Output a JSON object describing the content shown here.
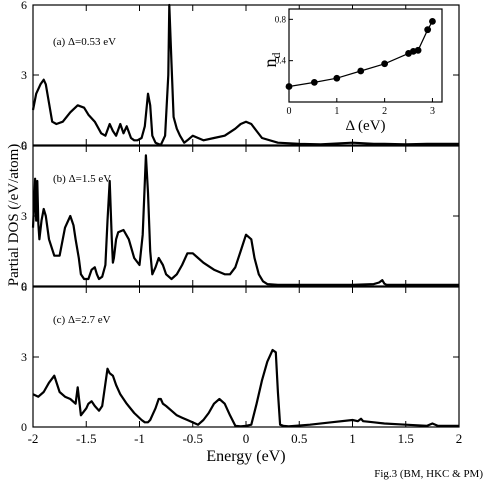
{
  "figure": {
    "caption": "Fig.3 (BM, HKC & PM)",
    "xlabel": "Energy (eV)",
    "ylabel": "Partial DOS (/eV/atom)"
  },
  "chart_data": [
    {
      "type": "line",
      "annotation": "(a) Δ=0.53 eV",
      "xlim": [
        -2,
        2
      ],
      "ylim": [
        0,
        6
      ],
      "yticks": [
        0,
        3,
        6
      ],
      "x": [
        -2.0,
        -1.97,
        -1.93,
        -1.9,
        -1.88,
        -1.85,
        -1.82,
        -1.78,
        -1.72,
        -1.65,
        -1.58,
        -1.52,
        -1.48,
        -1.42,
        -1.36,
        -1.32,
        -1.28,
        -1.25,
        -1.22,
        -1.18,
        -1.15,
        -1.12,
        -1.08,
        -1.05,
        -1.02,
        -0.98,
        -0.95,
        -0.92,
        -0.9,
        -0.88,
        -0.85,
        -0.8,
        -0.76,
        -0.73,
        -0.72,
        -0.7,
        -0.68,
        -0.65,
        -0.62,
        -0.58,
        -0.55,
        -0.5,
        -0.45,
        -0.4,
        -0.3,
        -0.2,
        -0.1,
        -0.05,
        0.0,
        0.05,
        0.1,
        0.15,
        0.3,
        0.5,
        0.7,
        1.0,
        1.2,
        1.3,
        1.5,
        1.7,
        1.8,
        2.0
      ],
      "y": [
        1.5,
        2.2,
        2.6,
        2.8,
        2.6,
        1.8,
        1.0,
        0.9,
        1.0,
        1.4,
        1.7,
        1.6,
        1.3,
        1.0,
        0.5,
        0.4,
        0.9,
        0.6,
        0.4,
        0.9,
        0.5,
        0.8,
        0.3,
        0.2,
        0.2,
        0.3,
        0.8,
        2.2,
        1.7,
        0.4,
        0.1,
        0.0,
        0.4,
        3.0,
        6.0,
        3.5,
        1.2,
        0.7,
        0.4,
        0.1,
        0.2,
        0.4,
        0.3,
        0.2,
        0.3,
        0.4,
        0.7,
        0.9,
        1.0,
        0.9,
        0.6,
        0.3,
        0.1,
        0.05,
        0.03,
        0.1,
        0.05,
        0.05,
        0.03,
        0.05,
        0.05,
        0.05
      ],
      "inset": {
        "type": "line+scatter",
        "xlabel": "Δ (eV)",
        "ylabel": "n_d",
        "ylabel_main": "n",
        "ylabel_sub": "d",
        "xlim": [
          0,
          3.2
        ],
        "ylim": [
          0,
          0.9
        ],
        "xticks": [
          0,
          1,
          2,
          3
        ],
        "xticklabels": [
          "0",
          "1",
          "2",
          "3"
        ],
        "yticks": [
          0.4,
          0.8
        ],
        "yticklabels": [
          "0.4",
          "0.8"
        ],
        "x": [
          0,
          0.53,
          1.0,
          1.5,
          2.0,
          2.5,
          2.6,
          2.7,
          2.9,
          3.0
        ],
        "y": [
          0.15,
          0.19,
          0.23,
          0.3,
          0.37,
          0.47,
          0.49,
          0.5,
          0.7,
          0.78
        ]
      }
    },
    {
      "type": "line",
      "annotation": "(b) Δ=1.5 eV",
      "xlim": [
        -2,
        2
      ],
      "ylim": [
        0,
        6
      ],
      "yticks": [
        0,
        3,
        6
      ],
      "x": [
        -2.0,
        -1.99,
        -1.98,
        -1.97,
        -1.96,
        -1.95,
        -1.94,
        -1.92,
        -1.9,
        -1.88,
        -1.85,
        -1.8,
        -1.75,
        -1.7,
        -1.65,
        -1.62,
        -1.6,
        -1.57,
        -1.55,
        -1.52,
        -1.48,
        -1.45,
        -1.42,
        -1.4,
        -1.38,
        -1.35,
        -1.32,
        -1.3,
        -1.28,
        -1.26,
        -1.25,
        -1.24,
        -1.22,
        -1.2,
        -1.15,
        -1.1,
        -1.05,
        -1.0,
        -0.97,
        -0.94,
        -0.92,
        -0.9,
        -0.88,
        -0.85,
        -0.82,
        -0.78,
        -0.75,
        -0.7,
        -0.65,
        -0.6,
        -0.55,
        -0.5,
        -0.45,
        -0.4,
        -0.3,
        -0.2,
        -0.15,
        -0.1,
        -0.05,
        0.0,
        0.05,
        0.08,
        0.12,
        0.16,
        0.2,
        0.3,
        0.5,
        0.8,
        1.0,
        1.2,
        1.25,
        1.28,
        1.3,
        1.32,
        1.35,
        1.5,
        1.6,
        1.8,
        1.9,
        2.0
      ],
      "y": [
        2.5,
        3.5,
        4.6,
        2.8,
        4.5,
        2.7,
        2.0,
        2.8,
        3.3,
        3.0,
        2.0,
        1.3,
        1.3,
        2.5,
        3.0,
        2.6,
        2.0,
        1.2,
        0.5,
        0.3,
        0.3,
        0.7,
        0.8,
        0.5,
        0.3,
        0.4,
        0.9,
        2.8,
        4.5,
        2.0,
        1.0,
        1.2,
        2.0,
        2.3,
        2.4,
        2.0,
        1.2,
        0.9,
        2.2,
        5.6,
        4.0,
        1.5,
        0.5,
        0.8,
        1.2,
        0.9,
        0.5,
        0.3,
        0.5,
        0.9,
        1.4,
        1.4,
        1.2,
        1.0,
        0.7,
        0.5,
        0.5,
        0.8,
        1.5,
        2.2,
        2.0,
        1.2,
        0.5,
        0.2,
        0.08,
        0.05,
        0.05,
        0.05,
        0.05,
        0.08,
        0.15,
        0.25,
        0.1,
        0.05,
        0.05,
        0.05,
        0.05,
        0.05,
        0.05,
        0.05
      ]
    },
    {
      "type": "line",
      "annotation": "(c) Δ=2.7 eV",
      "xlim": [
        -2,
        2
      ],
      "ylim": [
        0,
        6
      ],
      "yticks": [
        0,
        3,
        6
      ],
      "x": [
        -2.0,
        -1.95,
        -1.9,
        -1.85,
        -1.8,
        -1.75,
        -1.7,
        -1.65,
        -1.6,
        -1.58,
        -1.55,
        -1.5,
        -1.48,
        -1.45,
        -1.42,
        -1.38,
        -1.35,
        -1.3,
        -1.28,
        -1.25,
        -1.22,
        -1.18,
        -1.12,
        -1.05,
        -0.98,
        -0.95,
        -0.92,
        -0.9,
        -0.88,
        -0.85,
        -0.82,
        -0.8,
        -0.78,
        -0.75,
        -0.7,
        -0.65,
        -0.6,
        -0.55,
        -0.45,
        -0.4,
        -0.35,
        -0.3,
        -0.25,
        -0.2,
        -0.15,
        -0.1,
        -0.05,
        0.0,
        0.05,
        0.1,
        0.15,
        0.2,
        0.25,
        0.28,
        0.3,
        0.32,
        0.35,
        0.4,
        0.6,
        0.8,
        1.0,
        1.05,
        1.08,
        1.1,
        1.2,
        1.3,
        1.5,
        1.7,
        1.75,
        1.8,
        1.9,
        2.0
      ],
      "y": [
        1.4,
        1.3,
        1.5,
        1.9,
        2.2,
        1.5,
        1.3,
        1.2,
        1.0,
        1.7,
        0.5,
        0.8,
        1.0,
        1.1,
        0.9,
        0.7,
        0.9,
        2.5,
        2.3,
        2.2,
        1.8,
        1.4,
        1.0,
        0.6,
        0.3,
        0.2,
        0.2,
        0.3,
        0.5,
        0.8,
        1.2,
        1.2,
        1.0,
        0.9,
        0.7,
        0.5,
        0.4,
        0.3,
        0.1,
        0.3,
        0.6,
        1.0,
        1.2,
        1.0,
        0.5,
        0.05,
        0.03,
        0.05,
        0.1,
        1.0,
        2.0,
        2.8,
        3.3,
        3.2,
        1.5,
        0.1,
        0.05,
        0.03,
        0.1,
        0.2,
        0.3,
        0.25,
        0.35,
        0.25,
        0.2,
        0.15,
        0.1,
        0.05,
        0.15,
        0.05,
        0.05,
        0.05
      ]
    }
  ],
  "xaxis": {
    "ticks": [
      -2,
      -1.5,
      -1,
      -0.5,
      0,
      0.5,
      1,
      1.5,
      2
    ],
    "ticklabels": [
      "-2",
      "-1.5",
      "-1",
      "-0.5",
      "0",
      "0.5",
      "1",
      "1.5",
      "2"
    ]
  }
}
